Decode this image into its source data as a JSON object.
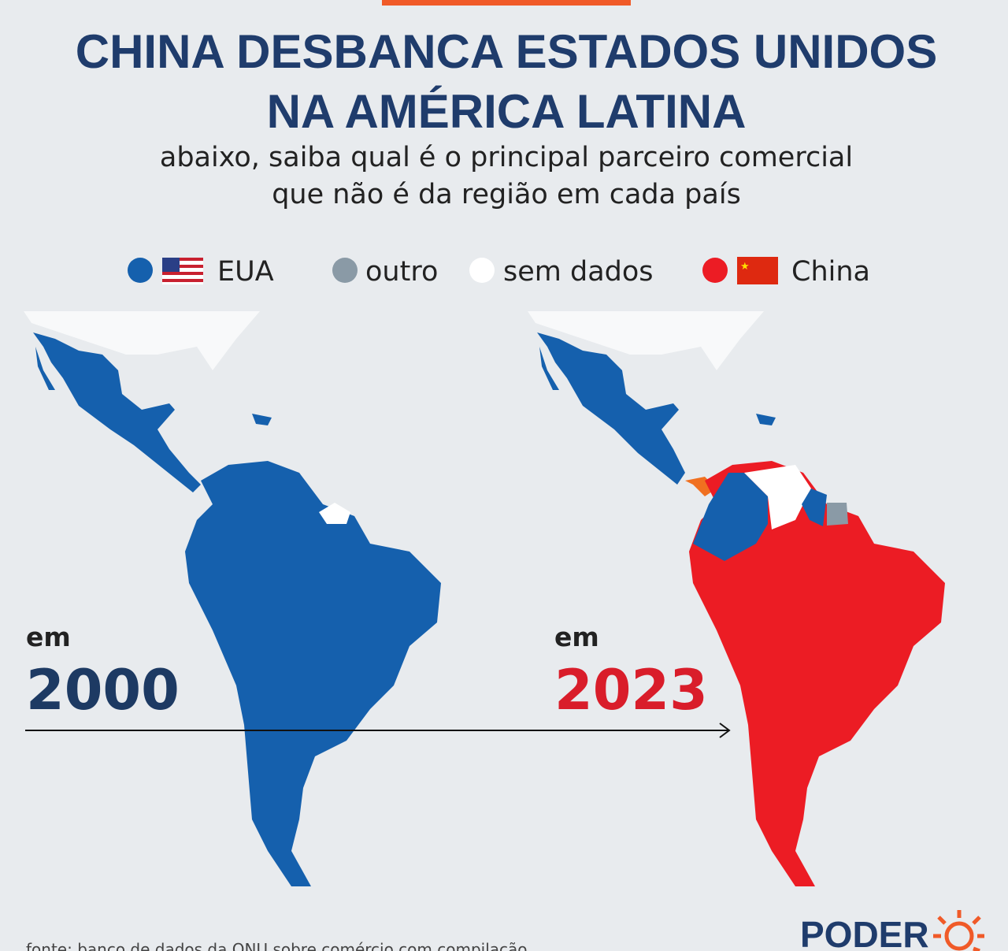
{
  "header": {
    "title": [
      "CHINA DESBANCA ESTADOS UNIDOS",
      "NA AMÉRICA LATINA"
    ],
    "subtitle": [
      "abaixo, saiba qual é o principal parceiro comercial",
      "que não é da região em cada país"
    ]
  },
  "legend": [
    {
      "label": "EUA"
    },
    {
      "label": "outro"
    },
    {
      "label": "sem dados"
    },
    {
      "label": "China"
    }
  ],
  "maps": [
    {
      "prefix": "em",
      "year": "2000"
    },
    {
      "prefix": "em",
      "year": "2023"
    }
  ],
  "footer": {
    "source": "fonte: banco de dados da ONU sobre comércio com compilação",
    "brand": "PODER"
  }
}
